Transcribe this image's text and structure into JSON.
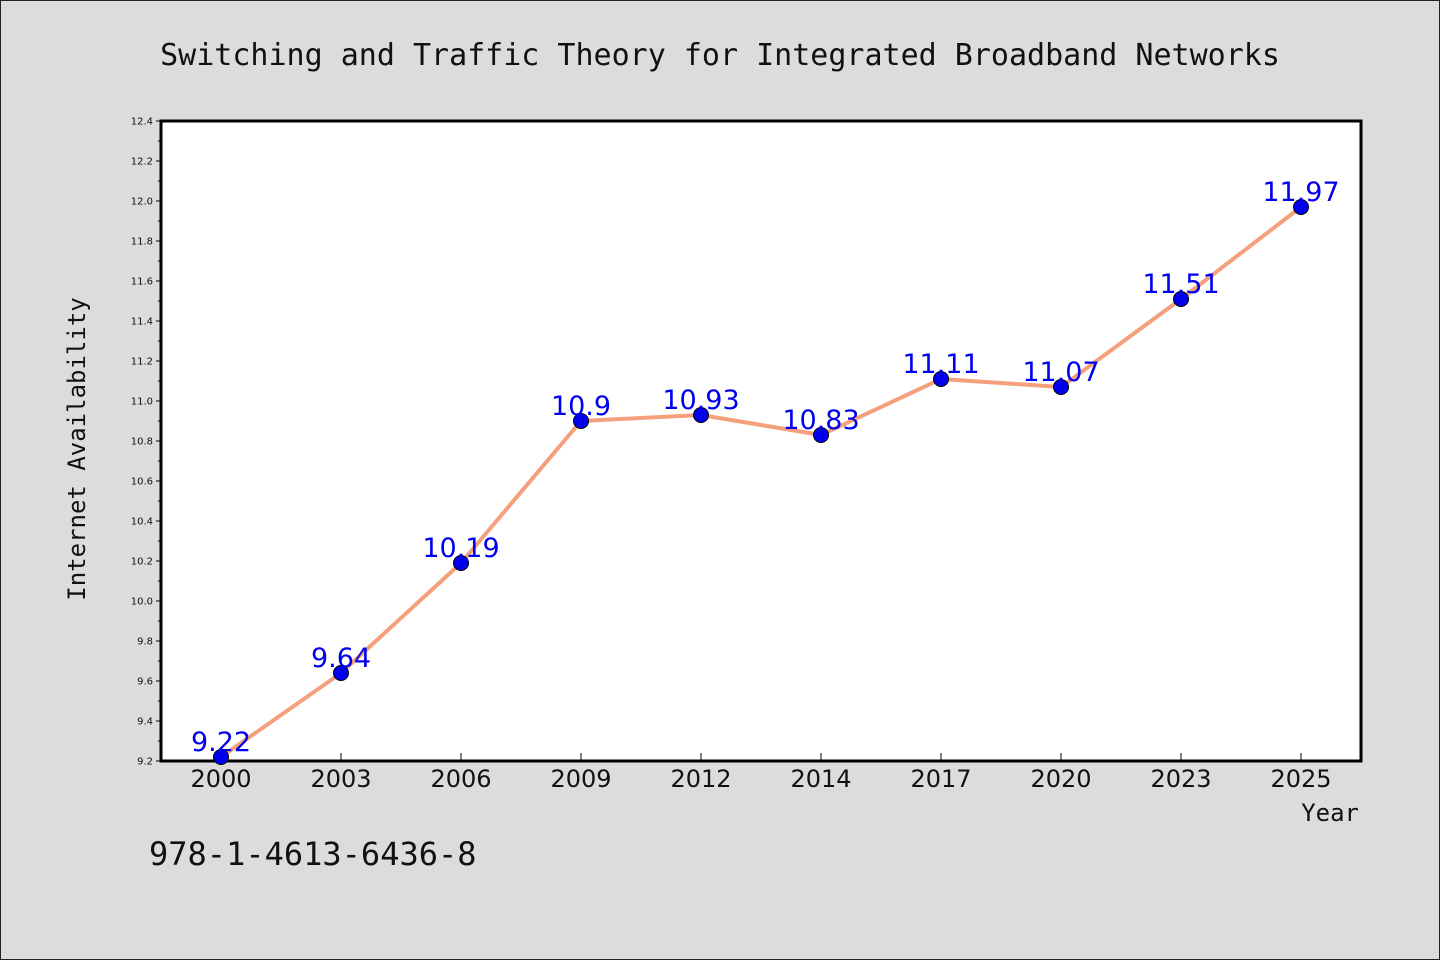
{
  "chart_data": {
    "type": "line",
    "title": "Switching and Traffic Theory for Integrated Broadband Networks",
    "xlabel": "Year",
    "ylabel": "Internet Availability",
    "categories": [
      "2000",
      "2003",
      "2006",
      "2009",
      "2012",
      "2014",
      "2017",
      "2020",
      "2023",
      "2025"
    ],
    "series": [
      {
        "values": [
          9.22,
          9.64,
          10.19,
          10.9,
          10.93,
          10.83,
          11.11,
          11.07,
          11.51,
          11.97
        ],
        "data_labels": [
          "9.22",
          "9.64",
          "10.19",
          "10.9",
          "10.93",
          "10.83",
          "11.11",
          "11.07",
          "11.51",
          "11.97"
        ]
      }
    ],
    "ylim": [
      9.2,
      12.4
    ],
    "yticks": [
      "9.2",
      "9.4",
      "9.6",
      "9.8",
      "10.0",
      "10.2",
      "10.4",
      "10.6",
      "10.8",
      "11.0",
      "11.2",
      "11.4",
      "11.6",
      "11.8",
      "12.0",
      "12.2",
      "12.4"
    ],
    "grid": false,
    "legend": "none",
    "colors": {
      "line": "#f4a07c",
      "marker": "#0000ee",
      "label": "#0000ee",
      "background": "#dcdcdc",
      "plot_background": "#ffffff"
    }
  },
  "footer": {
    "isbn": "978-1-4613-6436-8"
  }
}
